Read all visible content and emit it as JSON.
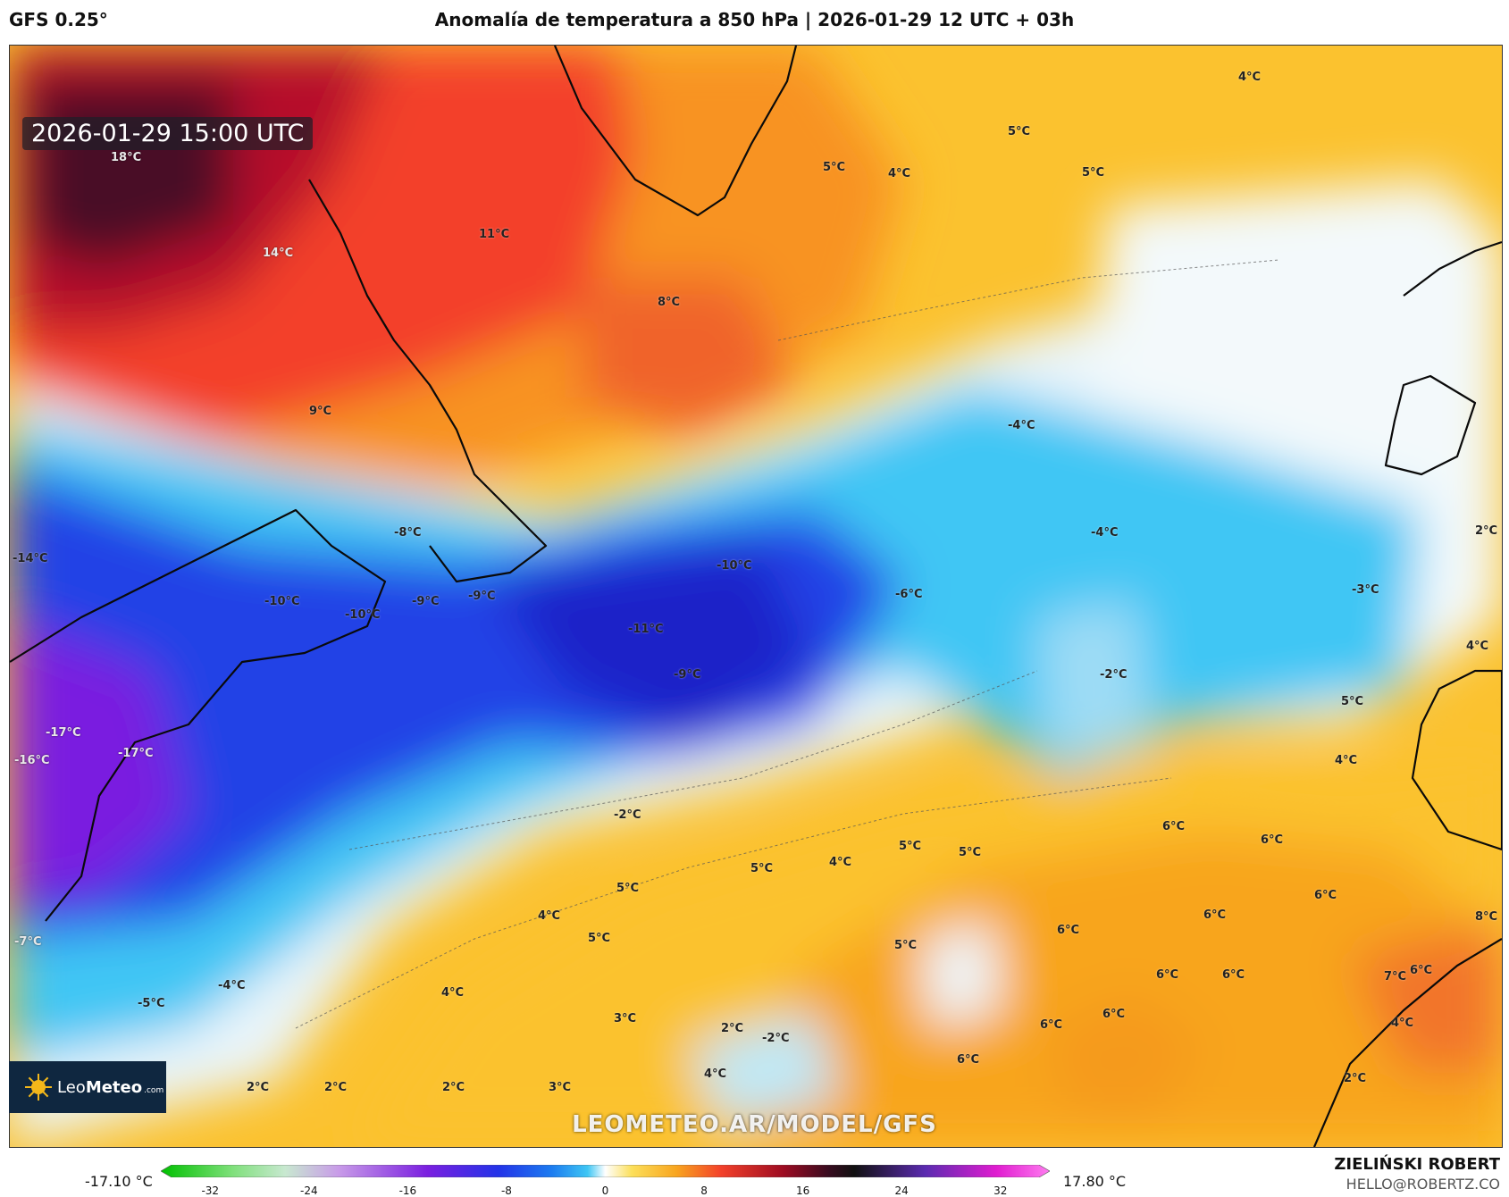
{
  "header": {
    "model": "GFS 0.25°",
    "title": "Anomalía de temperatura a 850 hPa | 2026-01-29 12 UTC + 03h"
  },
  "map": {
    "timestamp": "2026-01-29 15:00 UTC",
    "watermark": "LEOMETEO.AR/MODEL/GFS",
    "logo": {
      "name_light": "Leo",
      "name_bold": "Meteo",
      "suffix": ".com"
    },
    "labels": [
      "18°C",
      "14°C",
      "11°C",
      "8°C",
      "9°C",
      "5°C",
      "4°C",
      "5°C",
      "5°C",
      "4°C",
      "-4°C",
      "-4°C",
      "2°C",
      "-8°C",
      "-10°C",
      "-14°C",
      "-10°C",
      "-10°C",
      "-9°C",
      "-9°C",
      "-11°C",
      "-9°C",
      "-6°C",
      "-3°C",
      "4°C",
      "-2°C",
      "5°C",
      "-17°C",
      "-16°C",
      "-17°C",
      "4°C",
      "6°C",
      "-2°C",
      "6°C",
      "5°C",
      "5°C",
      "5°C",
      "4°C",
      "5°C",
      "6°C",
      "-7°C",
      "4°C",
      "6°C",
      "6°C",
      "8°C",
      "5°C",
      "6°C",
      "5°C",
      "-4°C",
      "-5°C",
      "4°C",
      "6°C",
      "6°C",
      "7°C",
      "3°C",
      "2°C",
      "-2°C",
      "6°C",
      "6°C",
      "4°C",
      "4°C",
      "6°C",
      "2°C",
      "2°C",
      "2°C",
      "3°C",
      "2°C"
    ]
  },
  "scale": {
    "min_label": "-17.10 °C",
    "max_label": "17.80 °C",
    "ticks": [
      "-32",
      "-24",
      "-16",
      "-8",
      "0",
      "8",
      "16",
      "24",
      "32"
    ]
  },
  "footer": {
    "author": "ZIELIŃSKI ROBERT",
    "email": "HELLO@ROBERTZ.CO"
  },
  "colors": {
    "strong_cold": "#7a1fe0",
    "cold": "#1f3fe6",
    "cool": "#3ec6f5",
    "neutral": "#eef7fb",
    "mild": "#fcd23c",
    "warm": "#f7a21b",
    "hot": "#f0462b",
    "very_hot": "#9e0c22"
  }
}
